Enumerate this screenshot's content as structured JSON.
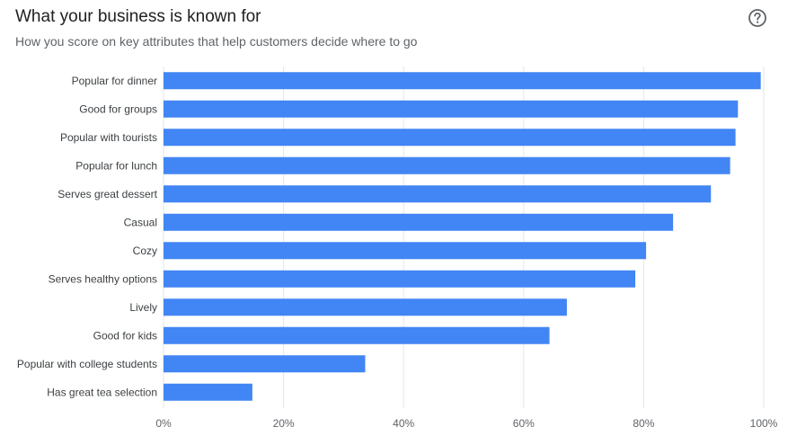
{
  "header": {
    "title": "What your business is known for",
    "subtitle": "How you score on key attributes that help customers decide where to go",
    "help_icon": "question-circle-icon"
  },
  "colors": {
    "bar": "#4285f4",
    "grid": "#e6e6e6",
    "axis_text": "#5f6368"
  },
  "chart_data": {
    "type": "bar",
    "orientation": "horizontal",
    "title": "",
    "xlabel": "",
    "ylabel": "",
    "xlim": [
      0,
      100
    ],
    "grid": true,
    "x_ticks": [
      "0%",
      "20%",
      "40%",
      "60%",
      "80%",
      "100%"
    ],
    "categories": [
      "Popular for dinner",
      "Good for groups",
      "Popular with tourists",
      "Popular for lunch",
      "Serves great dessert",
      "Casual",
      "Cozy",
      "Serves healthy options",
      "Lively",
      "Good for kids",
      "Popular with college students",
      "Has great tea selection"
    ],
    "values": [
      99.5,
      95.7,
      95.3,
      94.4,
      91.2,
      84.9,
      80.4,
      78.6,
      67.2,
      64.3,
      33.6,
      14.8
    ],
    "unit": "%"
  }
}
